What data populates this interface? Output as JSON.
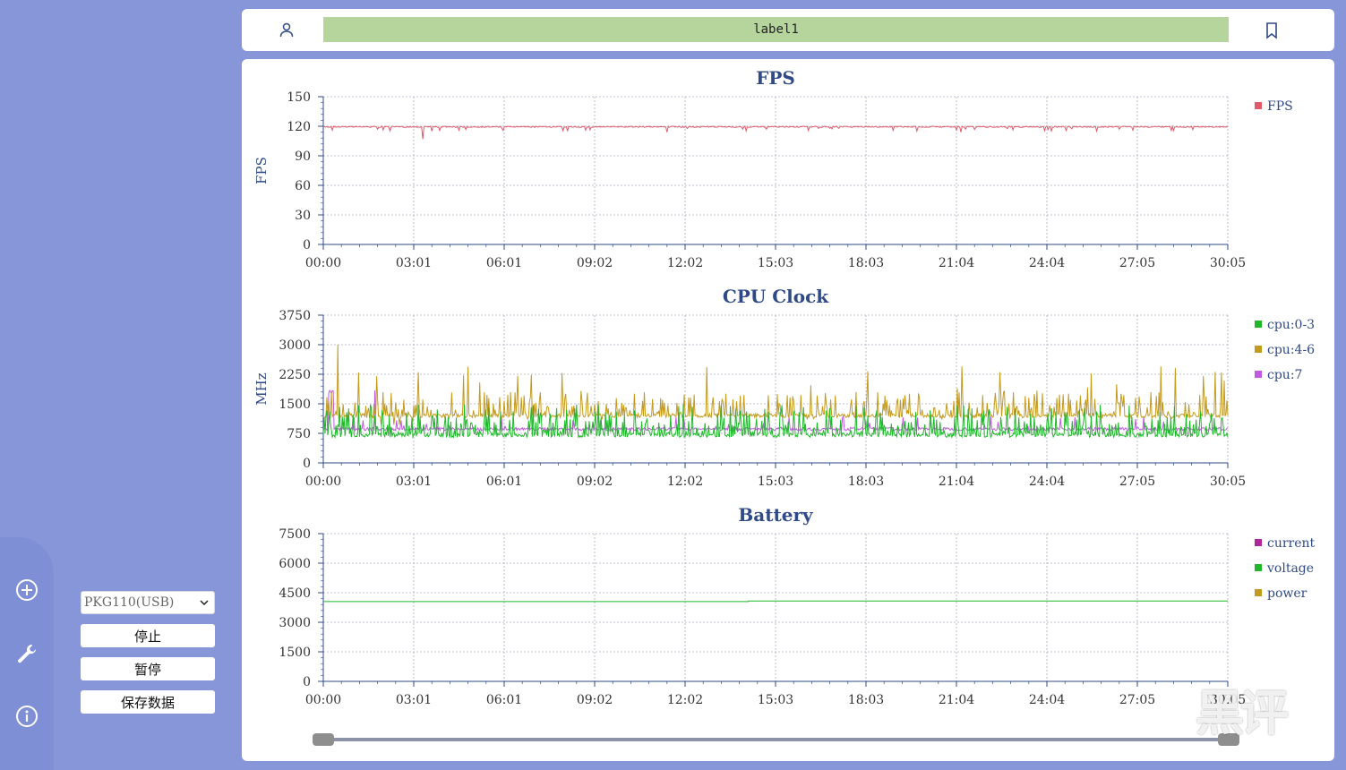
{
  "topbar": {
    "label": "label1"
  },
  "controls": {
    "device": "PKG110(USB)",
    "stop_label": "停止",
    "pause_label": "暂停",
    "save_label": "保存数据"
  },
  "watermark": "黑评",
  "time_ticks": [
    "00:00",
    "03:01",
    "06:01",
    "09:02",
    "12:02",
    "15:03",
    "18:03",
    "21:04",
    "24:04",
    "27:05",
    "30:05"
  ],
  "chart_data": [
    {
      "type": "line",
      "title": "FPS",
      "ylabel": "FPS",
      "ylim": [
        0,
        150
      ],
      "yticks": [
        0,
        30,
        60,
        90,
        120,
        150
      ],
      "series": [
        {
          "name": "FPS",
          "color": "#e05a6a",
          "baseline": 120,
          "dips": [
            [
              0.01,
              116
            ],
            [
              0.06,
              117
            ],
            [
              0.11,
              107
            ],
            [
              0.12,
              115
            ],
            [
              0.15,
              116
            ],
            [
              0.29,
              116
            ],
            [
              0.38,
              114
            ],
            [
              0.49,
              117
            ],
            [
              0.57,
              118
            ],
            [
              0.7,
              116
            ],
            [
              0.705,
              114
            ],
            [
              0.71,
              117
            ],
            [
              0.88,
              117
            ],
            [
              0.895,
              116
            ]
          ]
        }
      ]
    },
    {
      "type": "line",
      "title": "CPU Clock",
      "ylabel": "MHz",
      "ylim": [
        0,
        3750
      ],
      "yticks": [
        0,
        750,
        1500,
        2250,
        3000,
        3750
      ],
      "series": [
        {
          "name": "cpu:0-3",
          "color": "#1fb82a",
          "baseline": 700,
          "spike_max": 1500
        },
        {
          "name": "cpu:4-6",
          "color": "#c49a1c",
          "baseline": 1200,
          "spike_max": 2450,
          "peak": 3000
        },
        {
          "name": "cpu:7",
          "color": "#c05ae0",
          "baseline": 850,
          "spike_max": 1850
        }
      ]
    },
    {
      "type": "line",
      "title": "Battery",
      "ylabel": "",
      "ylim": [
        0,
        7500
      ],
      "yticks": [
        0,
        1500,
        3000,
        4500,
        6000,
        7500
      ],
      "series": [
        {
          "name": "current",
          "color": "#b0279a"
        },
        {
          "name": "voltage",
          "color": "#1fb82a",
          "values": [
            4050,
            4080
          ]
        },
        {
          "name": "power",
          "color": "#c49a1c"
        }
      ]
    }
  ]
}
